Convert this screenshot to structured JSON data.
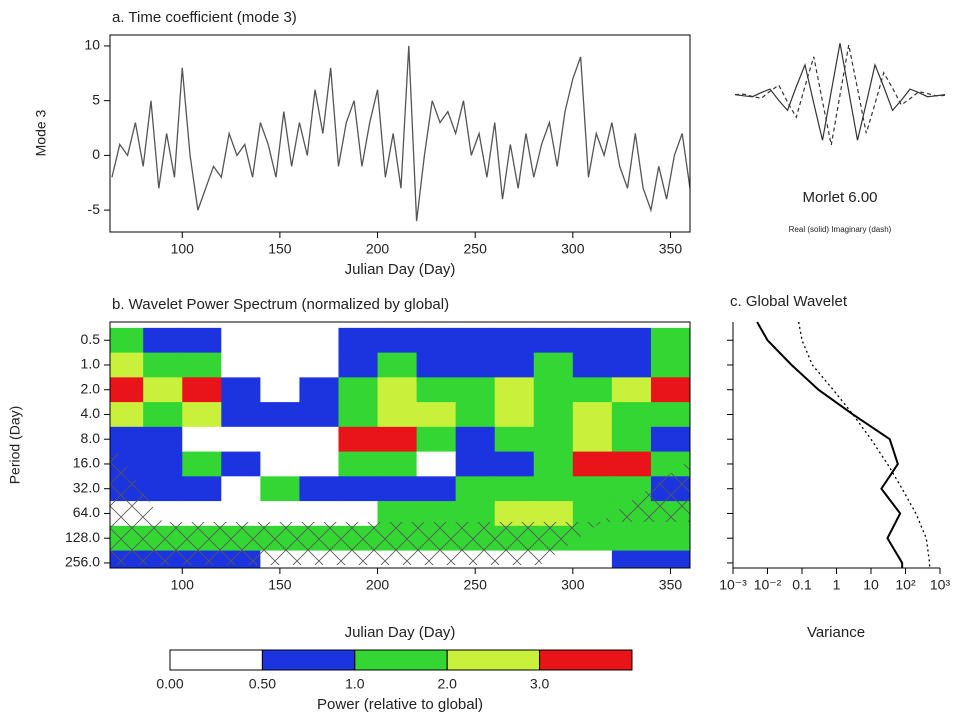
{
  "chart_data": [
    {
      "type": "line",
      "title": "a. Time coefficient (mode 3)",
      "ylabel": "Mode 3",
      "xlabel": "Julian Day (Day)",
      "x": [
        64,
        68,
        72,
        76,
        80,
        84,
        88,
        92,
        96,
        100,
        104,
        108,
        112,
        116,
        120,
        124,
        128,
        132,
        136,
        140,
        144,
        148,
        152,
        156,
        160,
        164,
        168,
        172,
        176,
        180,
        184,
        188,
        192,
        196,
        200,
        204,
        208,
        212,
        216,
        220,
        224,
        228,
        232,
        236,
        240,
        244,
        248,
        252,
        256,
        260,
        264,
        268,
        272,
        276,
        280,
        284,
        288,
        292,
        296,
        300,
        304,
        308,
        312,
        316,
        320,
        324,
        328,
        332,
        336,
        340,
        344,
        348,
        352,
        356,
        360
      ],
      "values": [
        -2,
        1,
        0,
        3,
        -1,
        5,
        -3,
        2,
        -2,
        8,
        0,
        -5,
        -3,
        -1,
        -2,
        2,
        0,
        1,
        -2,
        3,
        1,
        -2,
        4,
        -1,
        3,
        0,
        6,
        2,
        8,
        -1,
        3,
        5,
        -1,
        3,
        6,
        -2,
        2,
        -3,
        10,
        -6,
        0,
        5,
        3,
        4,
        2,
        5,
        0,
        2,
        -2,
        3,
        -4,
        1,
        -3,
        2,
        -2,
        1,
        3,
        -1,
        4,
        7,
        9,
        -2,
        2,
        0,
        3,
        -1,
        -3,
        2,
        -3,
        -5,
        -1,
        -4,
        0,
        2,
        -3
      ],
      "color": "#555555",
      "xlim": [
        63,
        360
      ],
      "ylim": [
        -7,
        11
      ],
      "xticks": [
        100,
        150,
        200,
        250,
        300,
        350
      ],
      "yticks": [
        -5,
        0,
        5,
        10
      ]
    },
    {
      "type": "wavelet",
      "title": "Morlet 6.00",
      "subtitle": "Real (solid)  Imaginary (dash)",
      "x": [
        -3,
        -2.75,
        -2.5,
        -2.25,
        -2,
        -1.75,
        -1.5,
        -1.25,
        -1,
        -0.75,
        -0.5,
        -0.25,
        0,
        0.25,
        0.5,
        0.75,
        1,
        1.25,
        1.5,
        1.75,
        2,
        2.25,
        2.5,
        2.75,
        3
      ],
      "series": [
        {
          "values": [
            0.007,
            -0.016,
            -0.033,
            0.047,
            0.114,
            -0.103,
            -0.296,
            0.159,
            0.582,
            -0.159,
            -0.874,
            0.069,
            1,
            0.069,
            -0.874,
            -0.159,
            0.582,
            0.159,
            -0.296,
            -0.103,
            0.114,
            0.047,
            -0.033,
            -0.016,
            0.007
          ],
          "style": "solid"
        },
        {
          "values": [
            0.008,
            0.016,
            -0.029,
            -0.064,
            0.073,
            0.19,
            -0.134,
            -0.43,
            0.169,
            0.738,
            -0.125,
            -0.966,
            0,
            0.966,
            0.125,
            -0.738,
            -0.169,
            0.43,
            0.134,
            -0.19,
            -0.073,
            0.064,
            0.029,
            -0.016,
            -0.008
          ],
          "style": "dashed"
        }
      ],
      "xlim": [
        -3,
        3
      ],
      "ylim": [
        -1.1,
        1.1
      ]
    },
    {
      "type": "heatmap",
      "title": "b. Wavelet Power Spectrum (normalized by global)",
      "ylabel": "Period (Day)",
      "xlabel": "Julian Day (Day)",
      "x": [
        70,
        90,
        110,
        130,
        150,
        170,
        190,
        210,
        230,
        250,
        270,
        290,
        310,
        330,
        350
      ],
      "periods": [
        0.5,
        1,
        2,
        4,
        8,
        16,
        32,
        64,
        128,
        256
      ],
      "values": [
        [
          1.2,
          0.6,
          0.8,
          0.2,
          0.1,
          0.3,
          0.7,
          0.9,
          0.6,
          0.5,
          0.8,
          0.7,
          0.9,
          0.6,
          1.1
        ],
        [
          2.5,
          1.5,
          1.2,
          0.3,
          0.2,
          0.4,
          0.8,
          1.2,
          0.9,
          0.7,
          0.8,
          1.0,
          0.9,
          0.8,
          1.5
        ],
        [
          3.5,
          2.5,
          3.2,
          0.8,
          0.2,
          0.5,
          1.0,
          2.5,
          1.5,
          1.2,
          2.6,
          1.5,
          1.8,
          2.5,
          3.1
        ],
        [
          2.5,
          1.5,
          2.0,
          0.9,
          0.6,
          0.5,
          1.5,
          2.5,
          2.2,
          1.5,
          2.0,
          1.5,
          2.2,
          1.5,
          1.2
        ],
        [
          0.8,
          0.6,
          0.4,
          0.1,
          0.2,
          0.3,
          3.2,
          3.5,
          1.5,
          0.8,
          1.8,
          1.5,
          2.0,
          1.2,
          0.6
        ],
        [
          0.6,
          0.9,
          1.0,
          0.9,
          0.4,
          0.2,
          1.5,
          1.2,
          0.3,
          0.5,
          0.8,
          1.5,
          3.5,
          3.2,
          1.5
        ],
        [
          0.5,
          0.7,
          0.5,
          0.3,
          1.2,
          0.8,
          0.5,
          0.6,
          0.8,
          1.2,
          1.5,
          1.3,
          1.2,
          1.0,
          0.6
        ],
        [
          0.3,
          0.2,
          0.1,
          0.1,
          0.1,
          0.2,
          0.2,
          1.2,
          1.5,
          1.2,
          2.1,
          2.2,
          1.3,
          1.1,
          1.0
        ],
        [
          1.5,
          1.5,
          1.5,
          1.5,
          1.5,
          1.4,
          1.3,
          1.2,
          1.2,
          1.5,
          1.5,
          1.5,
          1.3,
          1.2,
          1.1
        ],
        [
          0.7,
          0.6,
          0.6,
          0.5,
          0.4,
          0.4,
          0.3,
          0.3,
          0.3,
          0.3,
          0.3,
          0.4,
          0.4,
          0.5,
          0.5
        ]
      ],
      "xlim": [
        63,
        360
      ],
      "ylim": [
        0.3,
        295
      ],
      "yscale": "log",
      "xticks": [
        100,
        150,
        200,
        250,
        300,
        350
      ],
      "yticks": [
        0.5,
        {
          "value": 1,
          "label": "1.0"
        },
        {
          "value": 2,
          "label": "2.0"
        },
        {
          "value": 4,
          "label": "4.0"
        },
        {
          "value": 8,
          "label": "8.0"
        },
        {
          "value": 16,
          "label": "16.0"
        },
        {
          "value": 32,
          "label": "32.0"
        },
        {
          "value": 64,
          "label": "64.0"
        },
        {
          "value": 128,
          "label": "128.0"
        },
        {
          "value": 256,
          "label": "256.0"
        }
      ],
      "colorbar": {
        "label": "Power (relative to global)",
        "levels": [
          {
            "value": 0,
            "label": "0.00"
          },
          {
            "value": 0.5,
            "label": "0.50"
          },
          {
            "value": 1,
            "label": "1.0"
          },
          {
            "value": 2,
            "label": "2.0"
          },
          {
            "value": 3,
            "label": "3.0"
          }
        ],
        "colors": [
          "#ffffff",
          "#1c34e0",
          "#33d633",
          "#c9f03a",
          "#e8141a"
        ]
      }
    },
    {
      "type": "global",
      "title": "c. Global Wavelet",
      "xlabel": "Variance",
      "periods": [
        0.3,
        0.5,
        1,
        2,
        4,
        8,
        16,
        32,
        64,
        128,
        256,
        295
      ],
      "series": [
        {
          "values": [
            0.005,
            0.01,
            0.05,
            0.3,
            3,
            35,
            60,
            20,
            70,
            30,
            80,
            80
          ],
          "style": "solid"
        },
        {
          "values": [
            0.08,
            0.1,
            0.2,
            0.8,
            3,
            10,
            30,
            80,
            200,
            400,
            500,
            500
          ],
          "style": "dotted"
        }
      ],
      "xscale": "log",
      "xlim": [
        0.001,
        1000
      ],
      "xticks": [
        {
          "value": 0.001,
          "label": "10⁻³"
        },
        {
          "value": 0.01,
          "label": "10⁻²"
        },
        0.1,
        1,
        10,
        {
          "value": 100,
          "label": "10²"
        },
        {
          "value": 1000,
          "label": "10³"
        }
      ]
    }
  ]
}
